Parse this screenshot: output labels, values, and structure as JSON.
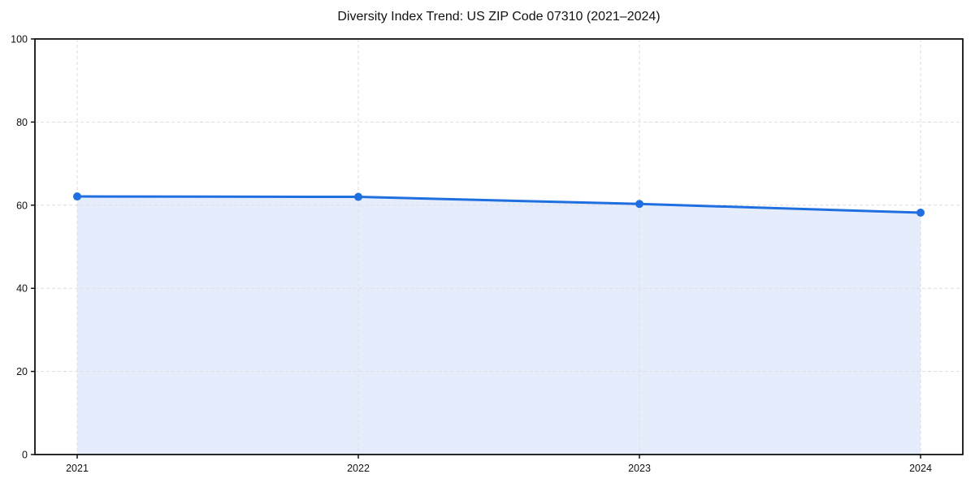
{
  "figure": {
    "title": "Diversity Index Trend: US ZIP Code 07310 (2021–2024)"
  },
  "chart_data": {
    "type": "line",
    "title": "Diversity Index Trend: US ZIP Code 07310 (2021–2024)",
    "xlabel": "",
    "ylabel": "",
    "x": [
      2021,
      2022,
      2023,
      2024
    ],
    "xticklabels": [
      "2021",
      "2022",
      "2023",
      "2024"
    ],
    "series": [
      {
        "name": "Diversity Index",
        "values": [
          62.1,
          62.0,
          60.3,
          58.2
        ]
      }
    ],
    "ylim": [
      0,
      100
    ],
    "yticks": [
      0,
      20,
      40,
      60,
      80,
      100
    ],
    "grid": true,
    "grid_style": "dashed",
    "legend": false,
    "area_fill": true,
    "marker": "circle",
    "colors": {
      "line": "#1f6fe0",
      "marker": "#1f6fe0",
      "fill": "#e5edfc",
      "grid": "#dedede",
      "axis": "#111111",
      "text": "#111111",
      "background": "#ffffff"
    }
  }
}
